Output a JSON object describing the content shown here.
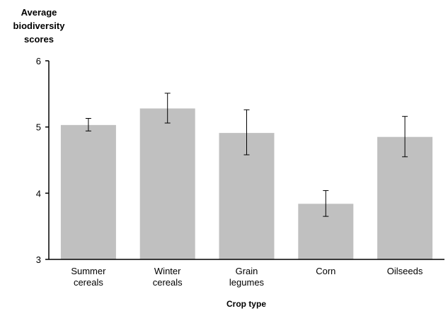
{
  "chart_data": {
    "type": "bar",
    "ylabel_lines": [
      "Average",
      "biodiversity",
      "scores"
    ],
    "xlabel": "Crop type",
    "categories": [
      [
        "Summer",
        "cereals"
      ],
      [
        "Winter",
        "cereals"
      ],
      [
        "Grain",
        "legumes"
      ],
      [
        "Corn"
      ],
      [
        "Oilseeds"
      ]
    ],
    "values": [
      5.03,
      5.28,
      4.91,
      3.84,
      4.85
    ],
    "error_low": [
      4.94,
      5.06,
      4.58,
      3.65,
      4.55
    ],
    "error_high": [
      5.13,
      5.51,
      5.26,
      4.04,
      5.16
    ],
    "ylim": [
      3,
      6
    ],
    "yticks": [
      "3",
      "4",
      "5",
      "6"
    ],
    "grid": false,
    "legend": "none",
    "bar_color": "#c0c0c0",
    "axis_color": "#000000"
  }
}
